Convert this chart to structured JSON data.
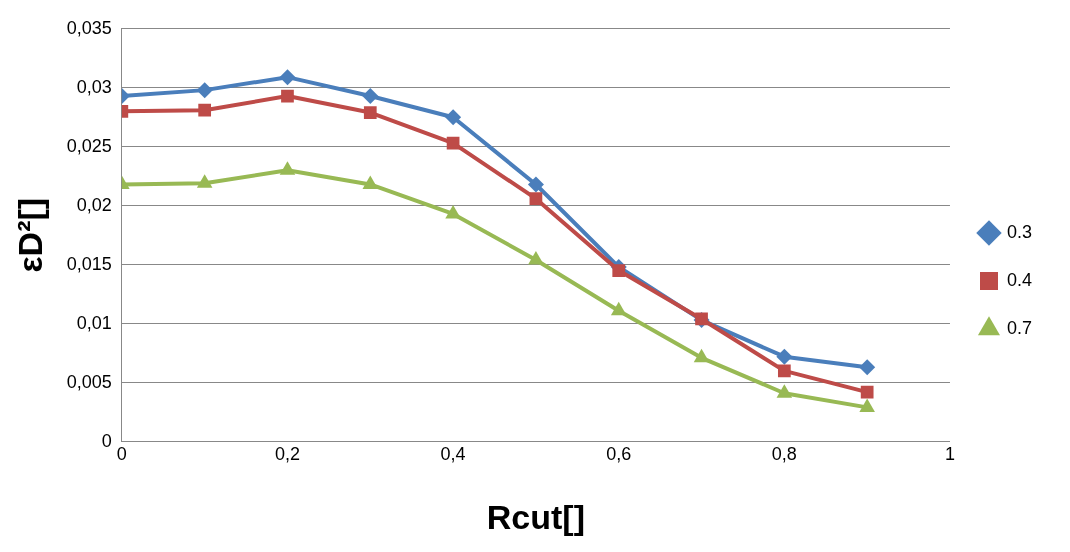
{
  "chart_data": {
    "type": "line",
    "xlabel": "Rcut[]",
    "ylabel": "εD²[]",
    "x": [
      0,
      0.1,
      0.2,
      0.3,
      0.4,
      0.5,
      0.6,
      0.7,
      0.8,
      0.9
    ],
    "series": [
      {
        "name": "0.3",
        "color": "#4a7ebb",
        "marker": "diamond",
        "values": [
          0.0293,
          0.0298,
          0.0309,
          0.0293,
          0.0275,
          0.0218,
          0.0148,
          0.0103,
          0.0072,
          0.0063
        ]
      },
      {
        "name": "0.4",
        "color": "#be4b48",
        "marker": "square",
        "values": [
          0.028,
          0.0281,
          0.0293,
          0.0279,
          0.0253,
          0.0206,
          0.0145,
          0.0104,
          0.006,
          0.0042
        ]
      },
      {
        "name": "0.7",
        "color": "#98b954",
        "marker": "triangle",
        "values": [
          0.0218,
          0.0219,
          0.023,
          0.0218,
          0.0193,
          0.0154,
          0.0111,
          0.0071,
          0.0041,
          0.0029
        ]
      }
    ],
    "xlim": [
      0,
      1
    ],
    "xticks": [
      0,
      {
        "value": 0.2,
        "label": "0,2"
      },
      {
        "value": 0.4,
        "label": "0,4"
      },
      {
        "value": 0.6,
        "label": "0,6"
      },
      {
        "value": 0.8,
        "label": "0,8"
      },
      1
    ],
    "ylim": [
      0,
      0.035
    ],
    "yticks": [
      0,
      {
        "value": 0.005,
        "label": "0,005"
      },
      {
        "value": 0.01,
        "label": "0,01"
      },
      {
        "value": 0.015,
        "label": "0,015"
      },
      {
        "value": 0.02,
        "label": "0,02"
      },
      {
        "value": 0.025,
        "label": "0,025"
      },
      {
        "value": 0.03,
        "label": "0,03"
      },
      {
        "value": 0.035,
        "label": "0,035"
      }
    ],
    "grid": "y",
    "legend": "right",
    "line_style": "solid"
  }
}
